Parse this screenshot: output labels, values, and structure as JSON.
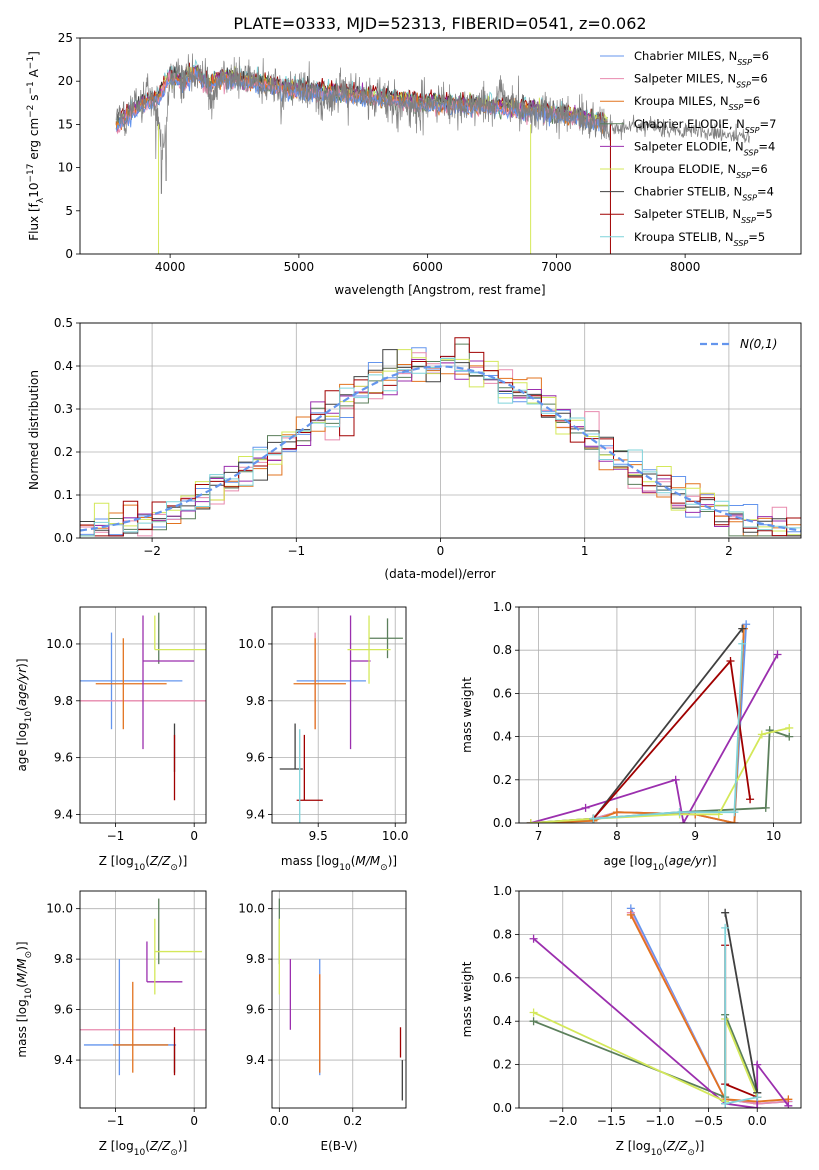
{
  "title": "PLATE=0333, MJD=52313, FIBERID=0541, z=0.062",
  "colors": [
    "#6495ED",
    "#E88AAE",
    "#E2731F",
    "#5B7F5B",
    "#9B2FAE",
    "#D4E85A",
    "#404040",
    "#A00000",
    "#7FD3DA"
  ],
  "legend_entries": [
    {
      "name": "Chabrier MILES, N_SSP=6",
      "base": "Chabrier MILES, N",
      "sub": "SSP",
      "tail": "=6"
    },
    {
      "name": "Salpeter MILES, N_SSP=6",
      "base": "Salpeter MILES, N",
      "sub": "SSP",
      "tail": "=6"
    },
    {
      "name": "Kroupa MILES, N_SSP=6",
      "base": "Kroupa MILES, N",
      "sub": "SSP",
      "tail": "=6"
    },
    {
      "name": "Chabrier ELODIE, N_SSP=7",
      "base": "Chabrier ELODIE, N",
      "sub": "SSP",
      "tail": "=7"
    },
    {
      "name": "Salpeter ELODIE, N_SSP=4",
      "base": "Salpeter ELODIE, N",
      "sub": "SSP",
      "tail": "=4"
    },
    {
      "name": "Kroupa ELODIE, N_SSP=6",
      "base": "Kroupa ELODIE, N",
      "sub": "SSP",
      "tail": "=6"
    },
    {
      "name": "Chabrier STELIB, N_SSP=4",
      "base": "Chabrier STELIB, N",
      "sub": "SSP",
      "tail": "=4"
    },
    {
      "name": "Salpeter STELIB, N_SSP=5",
      "base": "Salpeter STELIB, N",
      "sub": "SSP",
      "tail": "=5"
    },
    {
      "name": "Kroupa STELIB, N_SSP=5",
      "base": "Kroupa STELIB, N",
      "sub": "SSP",
      "tail": "=5"
    }
  ],
  "chart_data": [
    {
      "id": "spectrum",
      "type": "line",
      "xlabel": "wavelength [Angstrom, rest frame]",
      "ylabel": "Flux [f_λ 10^-17 erg cm^-2 s^-1 A^-1]",
      "xlim": [
        3300,
        8900
      ],
      "ylim": [
        0,
        25
      ],
      "xticks": [
        4000,
        5000,
        6000,
        7000,
        8000
      ],
      "yticks": [
        0,
        5,
        10,
        15,
        20,
        25
      ],
      "grid": false,
      "legend": "right",
      "observed": {
        "color": "#808080",
        "x": [
          3580,
          3620,
          3660,
          3700,
          3740,
          3780,
          3820,
          3860,
          3900,
          3933,
          3970,
          4000,
          4050,
          4100,
          4150,
          4200,
          4250,
          4300,
          4340,
          4400,
          4450,
          4500,
          4600,
          4700,
          4800,
          4861,
          4900,
          5000,
          5100,
          5175,
          5300,
          5400,
          5500,
          5600,
          5700,
          5800,
          5893,
          6000,
          6100,
          6200,
          6300,
          6400,
          6500,
          6563,
          6600,
          6700,
          6800,
          6900,
          7000,
          7100,
          7200,
          7300,
          7400,
          7420
        ],
        "y": [
          15.5,
          16.5,
          15.0,
          17.5,
          18.0,
          17.0,
          19.0,
          18.0,
          17.5,
          11.0,
          15.0,
          20.5,
          21.0,
          19.5,
          21.5,
          20.0,
          21.5,
          19.0,
          17.5,
          21.0,
          20.5,
          20.5,
          20.0,
          19.5,
          19.5,
          18.0,
          19.5,
          19.0,
          19.0,
          17.5,
          19.0,
          18.5,
          18.0,
          18.0,
          17.5,
          17.0,
          16.8,
          17.5,
          17.5,
          17.5,
          17.0,
          17.5,
          17.0,
          19.0,
          17.5,
          17.0,
          16.5,
          16.5,
          16.0,
          16.0,
          15.5,
          15.5,
          15.0,
          14.5
        ]
      },
      "model": {
        "x": [
          3580,
          3700,
          3800,
          3900,
          4000,
          4100,
          4200,
          4300,
          4400,
          4600,
          4800,
          5000,
          5200,
          5400,
          5600,
          5800,
          6000,
          6200,
          6400,
          6600,
          6800,
          7000,
          7200,
          7400
        ],
        "y": [
          14.8,
          16.5,
          17.5,
          18.0,
          20.5,
          20.0,
          21.0,
          19.5,
          20.5,
          20.0,
          19.5,
          19.0,
          18.8,
          18.5,
          18.2,
          17.8,
          17.5,
          17.4,
          17.2,
          17.0,
          16.8,
          16.3,
          15.8,
          15.2
        ]
      },
      "continuum_red": {
        "x": [
          7420,
          7500,
          7600,
          7700,
          7800,
          7900,
          8000,
          8100,
          8200,
          8300,
          8400,
          8500
        ],
        "y": [
          14.6,
          14.5,
          15.0,
          14.8,
          14.7,
          14.5,
          14.3,
          14.2,
          14.0,
          13.8,
          13.6,
          13.4
        ]
      }
    },
    {
      "id": "residuals",
      "type": "histogram",
      "xlabel": "(data-model)/error",
      "ylabel": "Normed distribution",
      "xlim": [
        -2.5,
        2.5
      ],
      "ylim": [
        0,
        0.5
      ],
      "xticks": [
        -2,
        -1,
        0,
        1,
        2
      ],
      "yticks": [
        0.0,
        0.1,
        0.2,
        0.3,
        0.4,
        0.5
      ],
      "grid": true,
      "legend": "upper right",
      "gaussian_label": "N(0,1)",
      "gaussian_color": "#6495ED",
      "bin_width": 0.1,
      "bin_start": -2.5
    },
    {
      "id": "age_vs_Z",
      "type": "errorbar",
      "xlabel": "Z [log10(Z/Z☉)]",
      "ylabel": "age  [log10(age/yr)]",
      "xlim": [
        -1.45,
        0.15
      ],
      "ylim": [
        9.37,
        10.13
      ],
      "xticks": [
        -1,
        0
      ],
      "yticks": [
        9.4,
        9.6,
        9.8,
        10.0
      ],
      "grid": true,
      "points": [
        {
          "x": -1.05,
          "xerr": [
            0.45,
            0.9
          ],
          "y": 9.87,
          "yerr": [
            0.17,
            0.17
          ]
        },
        {
          "x": -1.45,
          "xerr": [
            0.0,
            1.6
          ],
          "y": 9.8,
          "yerr": [
            0.0,
            0.0
          ]
        },
        {
          "x": -0.9,
          "xerr": [
            0.35,
            0.55
          ],
          "y": 9.86,
          "yerr": [
            0.16,
            0.16
          ]
        },
        {
          "x": -0.45,
          "xerr": [
            0.0,
            0.0
          ],
          "y": 10.02,
          "yerr": [
            0.09,
            0.09
          ]
        },
        {
          "x": -0.65,
          "xerr": [
            0.0,
            0.65
          ],
          "y": 9.94,
          "yerr": [
            0.31,
            0.16
          ]
        },
        {
          "x": -0.5,
          "xerr": [
            0.0,
            0.7
          ],
          "y": 9.98,
          "yerr": [
            0.0,
            0.12
          ]
        },
        {
          "x": -0.25,
          "xerr": [
            0.0,
            0.0
          ],
          "y": 9.55,
          "yerr": [
            0.0,
            0.17
          ]
        },
        {
          "x": -0.25,
          "xerr": [
            0.0,
            0.0
          ],
          "y": 9.45,
          "yerr": [
            0.0,
            0.23
          ]
        },
        {
          "x": -0.2,
          "xerr": [
            0.0,
            0.0
          ],
          "y": 9.55,
          "yerr": [
            0.0,
            0.0
          ]
        }
      ]
    },
    {
      "id": "age_vs_mass",
      "type": "errorbar",
      "xlabel": "mass [log10(M/M☉)]",
      "ylabel": "",
      "xlim": [
        9.2,
        10.07
      ],
      "ylim": [
        9.37,
        10.13
      ],
      "xticks": [
        9.5,
        10.0
      ],
      "yticks": [
        9.4,
        9.6,
        9.8,
        10.0
      ],
      "grid": true,
      "points": [
        {
          "x": 9.5,
          "xerr": [
            0.14,
            0.31
          ],
          "y": 9.87,
          "yerr": [
            0.0,
            0.0
          ]
        },
        {
          "x": 9.48,
          "xerr": [
            0.0,
            0.0
          ],
          "y": 9.87,
          "yerr": [
            0.17,
            0.17
          ]
        },
        {
          "x": 9.48,
          "xerr": [
            0.14,
            0.2
          ],
          "y": 9.86,
          "yerr": [
            0.16,
            0.16
          ]
        },
        {
          "x": 9.95,
          "xerr": [
            0.12,
            0.1
          ],
          "y": 10.02,
          "yerr": [
            0.07,
            0.07
          ]
        },
        {
          "x": 9.71,
          "xerr": [
            0.0,
            0.13
          ],
          "y": 9.94,
          "yerr": [
            0.31,
            0.16
          ]
        },
        {
          "x": 9.83,
          "xerr": [
            0.14,
            0.14
          ],
          "y": 9.98,
          "yerr": [
            0.12,
            0.12
          ]
        },
        {
          "x": 9.35,
          "xerr": [
            0.1,
            0.05
          ],
          "y": 9.56,
          "yerr": [
            0.0,
            0.16
          ]
        },
        {
          "x": 9.41,
          "xerr": [
            0.05,
            0.12
          ],
          "y": 9.45,
          "yerr": [
            0.0,
            0.23
          ]
        },
        {
          "x": 9.38,
          "xerr": [
            0.0,
            0.0
          ],
          "y": 9.55,
          "yerr": [
            0.18,
            0.15
          ]
        }
      ]
    },
    {
      "id": "weight_vs_age",
      "type": "line",
      "xlabel": "age  [log10(age/yr)]",
      "ylabel": "mass weight",
      "xlim": [
        6.75,
        10.35
      ],
      "ylim": [
        0.0,
        1.0
      ],
      "xticks": [
        7,
        8,
        9,
        10
      ],
      "yticks": [
        0.0,
        0.2,
        0.4,
        0.6,
        0.8,
        1.0
      ],
      "grid": true,
      "series": [
        {
          "x": [
            6.9,
            7.7,
            8.0,
            9.0,
            9.5,
            9.65
          ],
          "y": [
            0.0,
            0.02,
            0.05,
            0.04,
            0.0,
            0.92
          ]
        },
        {
          "x": [
            6.9,
            7.7,
            8.0,
            9.0,
            9.5,
            9.62
          ],
          "y": [
            0.0,
            0.02,
            0.05,
            0.04,
            0.0,
            0.9
          ]
        },
        {
          "x": [
            6.9,
            7.7,
            8.0,
            9.0,
            9.5,
            9.62
          ],
          "y": [
            0.0,
            0.01,
            0.05,
            0.04,
            0.0,
            0.9
          ]
        },
        {
          "x": [
            6.9,
            7.7,
            8.8,
            9.9,
            9.95,
            10.2
          ],
          "y": [
            0.0,
            0.02,
            0.05,
            0.07,
            0.43,
            0.4
          ]
        },
        {
          "x": [
            6.9,
            7.6,
            8.75,
            8.85,
            10.05
          ],
          "y": [
            0.0,
            0.07,
            0.2,
            0.0,
            0.78
          ]
        },
        {
          "x": [
            6.9,
            7.7,
            8.8,
            9.3,
            9.85,
            10.2
          ],
          "y": [
            0.0,
            0.02,
            0.04,
            0.04,
            0.41,
            0.44
          ]
        },
        {
          "x": [
            7.7,
            9.6
          ],
          "y": [
            0.02,
            0.9
          ]
        },
        {
          "x": [
            7.7,
            9.45,
            9.7
          ],
          "y": [
            0.02,
            0.75,
            0.11
          ]
        },
        {
          "x": [
            7.7,
            8.8,
            9.5,
            9.6
          ],
          "y": [
            0.02,
            0.05,
            0.05,
            0.83
          ]
        }
      ]
    },
    {
      "id": "mass_vs_Z",
      "type": "errorbar",
      "xlabel": "Z [log10(Z/Z☉)]",
      "ylabel": "mass [log10(M/M☉)]",
      "xlim": [
        -1.45,
        0.15
      ],
      "ylim": [
        9.21,
        10.07
      ],
      "xticks": [
        -1,
        0
      ],
      "yticks": [
        9.4,
        9.6,
        9.8,
        10.0
      ],
      "grid": true,
      "points": [
        {
          "x": -0.95,
          "xerr": [
            0.45,
            0.72
          ],
          "y": 9.46,
          "yerr": [
            0.12,
            0.34
          ]
        },
        {
          "x": -1.45,
          "xerr": [
            0.0,
            1.6
          ],
          "y": 9.52,
          "yerr": [
            0.0,
            0.0
          ]
        },
        {
          "x": -0.78,
          "xerr": [
            0.25,
            0.45
          ],
          "y": 9.46,
          "yerr": [
            0.11,
            0.25
          ]
        },
        {
          "x": -0.45,
          "xerr": [
            0.0,
            0.0
          ],
          "y": 9.91,
          "yerr": [
            0.13,
            0.13
          ]
        },
        {
          "x": -0.6,
          "xerr": [
            0.0,
            0.45
          ],
          "y": 9.71,
          "yerr": [
            0.0,
            0.16
          ]
        },
        {
          "x": -0.5,
          "xerr": [
            0.0,
            0.6
          ],
          "y": 9.83,
          "yerr": [
            0.17,
            0.13
          ]
        },
        {
          "x": -0.25,
          "xerr": [
            0.0,
            0.0
          ],
          "y": 9.35,
          "yerr": [
            0.0,
            0.11
          ]
        },
        {
          "x": -0.25,
          "xerr": [
            0.0,
            0.0
          ],
          "y": 9.41,
          "yerr": [
            0.07,
            0.12
          ]
        },
        {
          "x": -0.2,
          "xerr": [
            0.0,
            0.0
          ],
          "y": 9.35,
          "yerr": [
            0.0,
            0.0
          ]
        }
      ]
    },
    {
      "id": "mass_vs_EBV",
      "type": "errorbar",
      "xlabel": "E(B-V)",
      "ylabel": "",
      "xlim": [
        -0.02,
        0.345
      ],
      "ylim": [
        9.21,
        10.07
      ],
      "xticks": [
        0.0,
        0.2
      ],
      "yticks": [
        9.4,
        9.6,
        9.8,
        10.0
      ],
      "grid": true,
      "points": [
        {
          "x": 0.11,
          "xerr": [
            0.0,
            0.0
          ],
          "y": 9.46,
          "yerr": [
            0.12,
            0.34
          ]
        },
        {
          "x": 0.11,
          "xerr": [
            0.0,
            0.0
          ],
          "y": 9.52,
          "yerr": [
            0.16,
            0.22
          ]
        },
        {
          "x": 0.11,
          "xerr": [
            0.0,
            0.0
          ],
          "y": 9.46,
          "yerr": [
            0.11,
            0.28
          ]
        },
        {
          "x": 0.0,
          "xerr": [
            0.0,
            0.0
          ],
          "y": 9.91,
          "yerr": [
            0.13,
            0.13
          ]
        },
        {
          "x": 0.03,
          "xerr": [
            0.0,
            0.0
          ],
          "y": 9.71,
          "yerr": [
            0.19,
            0.09
          ]
        },
        {
          "x": 0.0,
          "xerr": [
            0.0,
            0.0
          ],
          "y": 9.83,
          "yerr": [
            0.17,
            0.13
          ]
        },
        {
          "x": 0.335,
          "xerr": [
            0.0,
            0.0
          ],
          "y": 9.35,
          "yerr": [
            0.11,
            0.05
          ]
        },
        {
          "x": 0.33,
          "xerr": [
            0.0,
            0.0
          ],
          "y": 9.41,
          "yerr": [
            0.0,
            0.12
          ]
        },
        {
          "x": 0.335,
          "xerr": [
            0.0,
            0.0
          ],
          "y": 9.35,
          "yerr": [
            0.0,
            0.0
          ]
        }
      ]
    },
    {
      "id": "weight_vs_Z",
      "type": "line",
      "xlabel": "Z [log10(Z/Z☉)]",
      "ylabel": "mass weight",
      "xlim": [
        -2.45,
        0.45
      ],
      "ylim": [
        0.0,
        1.0
      ],
      "xticks": [
        -2.0,
        -1.5,
        -1.0,
        -0.5,
        0.0
      ],
      "yticks": [
        0.0,
        0.2,
        0.4,
        0.6,
        0.8,
        1.0
      ],
      "grid": true,
      "series": [
        {
          "x": [
            -1.3,
            -0.33,
            0.0,
            0.32
          ],
          "y": [
            0.92,
            0.04,
            0.02,
            0.03
          ]
        },
        {
          "x": [
            -1.3,
            -0.33,
            0.0,
            0.32
          ],
          "y": [
            0.9,
            0.04,
            0.02,
            0.03
          ]
        },
        {
          "x": [
            -1.3,
            -0.33,
            0.0,
            0.32
          ],
          "y": [
            0.89,
            0.04,
            0.03,
            0.04
          ]
        },
        {
          "x": [
            -2.3,
            -0.33,
            -0.33,
            0.0
          ],
          "y": [
            0.4,
            0.05,
            0.43,
            0.07
          ]
        },
        {
          "x": [
            -2.3,
            -0.33,
            0.0,
            0.0,
            0.32
          ],
          "y": [
            0.78,
            0.02,
            0.0,
            0.2,
            0.01
          ]
        },
        {
          "x": [
            -2.3,
            -0.33,
            -0.33,
            0.0
          ],
          "y": [
            0.44,
            0.03,
            0.41,
            0.05
          ]
        },
        {
          "x": [
            -0.33,
            0.0
          ],
          "y": [
            0.9,
            0.07
          ]
        },
        {
          "x": [
            -0.33,
            -0.33,
            0.0
          ],
          "y": [
            0.75,
            0.11,
            0.05
          ]
        },
        {
          "x": [
            -0.33,
            -0.33,
            0.0
          ],
          "y": [
            0.83,
            0.02,
            0.05
          ]
        }
      ]
    }
  ]
}
